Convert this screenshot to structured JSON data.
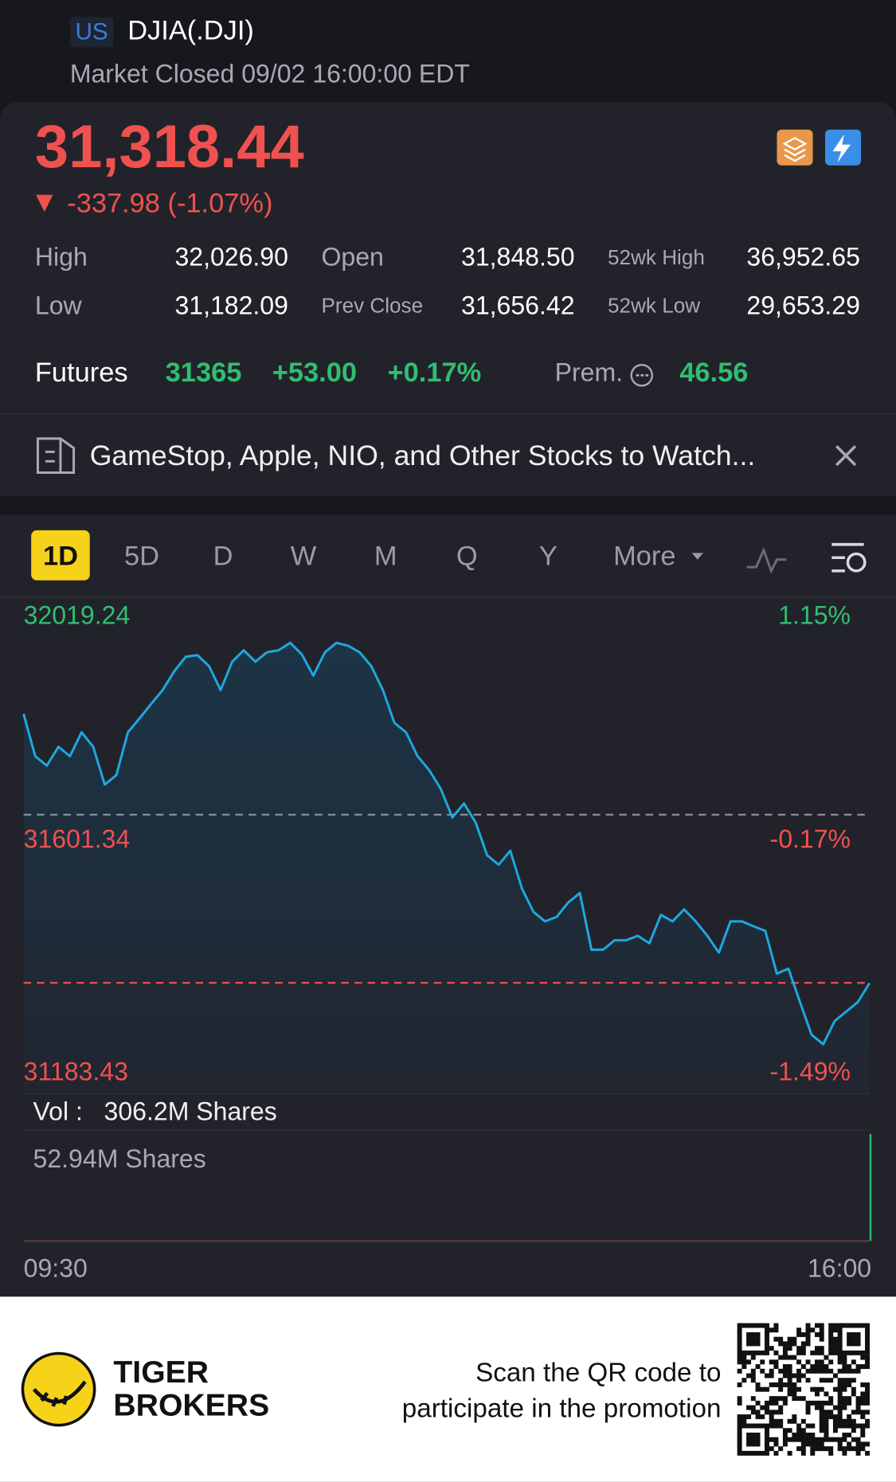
{
  "header": {
    "market": "US",
    "symbol": "DJIA(.DJI)",
    "status": "Market Closed 09/02 16:00:00 EDT"
  },
  "quote": {
    "price": "31,318.44",
    "change": "-337.98 (-1.07%)"
  },
  "stats": [
    {
      "label": "High",
      "value": "32,026.90"
    },
    {
      "label": "Open",
      "value": "31,848.50"
    },
    {
      "label": "52wk High",
      "value": "36,952.65"
    },
    {
      "label": "Low",
      "value": "31,182.09"
    },
    {
      "label": "Prev Close",
      "value": "31,656.42"
    },
    {
      "label": "52wk Low",
      "value": "29,653.29"
    }
  ],
  "futures": {
    "label": "Futures",
    "price": "31365",
    "change": "+53.00",
    "change_pct": "+0.17%",
    "premium_label": "Prem.",
    "premium": "46.56"
  },
  "news": {
    "headline": "GameStop, Apple, NIO, and Other Stocks to Watch..."
  },
  "tabs": [
    "1D",
    "5D",
    "D",
    "W",
    "M",
    "Q",
    "Y",
    "More"
  ],
  "active_tab": "1D",
  "chart_data": {
    "type": "line",
    "color": "#1ea8e0",
    "up_color": "#2fbf71",
    "down_color": "#f0514f",
    "ylim": [
      31183.43,
      32019.24
    ],
    "yticks": [
      32019.24,
      31601.34,
      31183.43
    ],
    "y2lim": [
      -1.49,
      1.15
    ],
    "y2ticks": [
      {
        "value": 1.15,
        "label": "1.15%"
      },
      {
        "value": -0.17,
        "label": "-0.17%"
      },
      {
        "value": -1.49,
        "label": "-1.49%"
      }
    ],
    "x_labels": [
      "09:30",
      "16:00"
    ],
    "reference_lines": [
      {
        "value": 31656.42,
        "color": "#8a8b94"
      },
      {
        "value": 31318.44,
        "color": "#e0504e"
      }
    ],
    "values": [
      31859,
      31774,
      31755,
      31793,
      31774,
      31822,
      31793,
      31717,
      31736,
      31822,
      31850,
      31879,
      31907,
      31945,
      31974,
      31977,
      31955,
      31907,
      31964,
      31987,
      31964,
      31983,
      31987,
      32002,
      31979,
      31936,
      31983,
      32002,
      31996,
      31983,
      31955,
      31907,
      31841,
      31822,
      31774,
      31746,
      31708,
      31651,
      31679,
      31641,
      31575,
      31556,
      31584,
      31508,
      31461,
      31442,
      31451,
      31480,
      31499,
      31385,
      31385,
      31404,
      31404,
      31413,
      31398,
      31455,
      31442,
      31466,
      31442,
      31413,
      31379,
      31442,
      31442,
      31432,
      31423,
      31337,
      31347,
      31280,
      31214,
      31195,
      31242,
      31261,
      31280,
      31318
    ]
  },
  "volume": {
    "label": "Vol :",
    "total": "306.2M Shares",
    "max": "52.94M Shares"
  },
  "footer": {
    "brand": [
      "TIGER",
      "BROKERS"
    ],
    "promo": [
      "Scan the QR code to",
      "participate in the promotion"
    ]
  }
}
